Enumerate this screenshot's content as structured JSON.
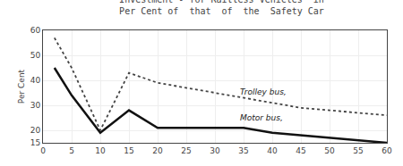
{
  "chart_data": {
    "type": "line",
    "title": "Investment - for Railless Vehicles  in",
    "subtitle": "Per Cent of  that  of  the  Safety Car",
    "ylabel": "Per Cent",
    "x": [
      2,
      5,
      10,
      15,
      20,
      25,
      30,
      35,
      40,
      45,
      50,
      55,
      60
    ],
    "series": [
      {
        "name": "Trolley bus,",
        "color": "#444444",
        "line_style": "dotted",
        "values": [
          57,
          45,
          20,
          43,
          39,
          37,
          35,
          33,
          31,
          29,
          28,
          27,
          26
        ]
      },
      {
        "name": "Motor bus,",
        "color": "#111111",
        "line_style": "solid",
        "values": [
          45,
          34,
          19,
          28,
          21,
          21,
          21,
          21,
          19,
          18,
          17,
          16,
          15
        ]
      }
    ],
    "annotations": [
      {
        "text": "Trolley bus,",
        "x": 34,
        "y": 33.0
      },
      {
        "text": "Motor bus,",
        "x": 34,
        "y": 22.5
      }
    ],
    "xlim": [
      0,
      60
    ],
    "xticks": [
      0,
      5,
      10,
      15,
      20,
      25,
      30,
      35,
      40,
      45,
      50,
      55,
      60
    ],
    "ylim": [
      15,
      60
    ],
    "yticks": [
      15,
      20,
      30,
      40,
      50,
      60
    ],
    "grid": true
  }
}
